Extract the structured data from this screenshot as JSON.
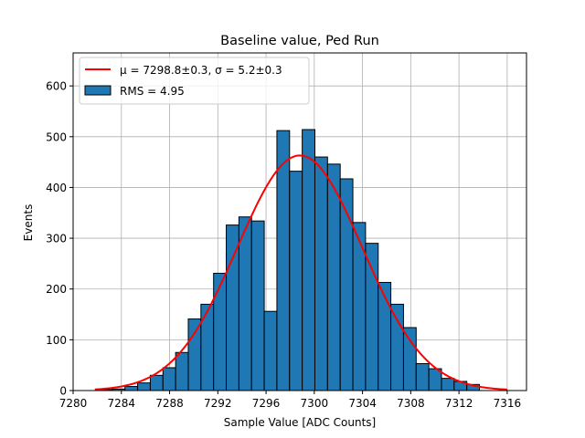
{
  "chart_data": {
    "type": "bar",
    "title": "Baseline value, Ped Run",
    "xlabel": "Sample Value [ADC Counts]",
    "ylabel": "Events",
    "xlim": [
      7280,
      7317.6
    ],
    "ylim": [
      0,
      665
    ],
    "xticks": [
      7280,
      7284,
      7288,
      7292,
      7296,
      7300,
      7304,
      7308,
      7312,
      7316
    ],
    "yticks": [
      0,
      100,
      200,
      300,
      400,
      500,
      600
    ],
    "grid": true,
    "legend_position": "top-left",
    "bar_color": "#1f77b4",
    "fit_color": "#ff0000",
    "bin_width": 1.05,
    "bins": [
      {
        "left": 7282.2,
        "value": 2
      },
      {
        "left": 7283.25,
        "value": 3
      },
      {
        "left": 7284.3,
        "value": 8
      },
      {
        "left": 7285.35,
        "value": 15
      },
      {
        "left": 7286.4,
        "value": 30
      },
      {
        "left": 7287.45,
        "value": 45
      },
      {
        "left": 7288.5,
        "value": 75
      },
      {
        "left": 7289.55,
        "value": 141
      },
      {
        "left": 7290.6,
        "value": 170
      },
      {
        "left": 7291.65,
        "value": 231
      },
      {
        "left": 7292.7,
        "value": 326
      },
      {
        "left": 7293.75,
        "value": 342
      },
      {
        "left": 7294.8,
        "value": 334
      },
      {
        "left": 7295.85,
        "value": 156
      },
      {
        "left": 7296.9,
        "value": 512
      },
      {
        "left": 7297.95,
        "value": 432
      },
      {
        "left": 7299.0,
        "value": 514
      },
      {
        "left": 7300.05,
        "value": 460
      },
      {
        "left": 7301.1,
        "value": 446
      },
      {
        "left": 7302.15,
        "value": 417
      },
      {
        "left": 7303.2,
        "value": 331
      },
      {
        "left": 7304.25,
        "value": 290
      },
      {
        "left": 7305.3,
        "value": 213
      },
      {
        "left": 7306.35,
        "value": 170
      },
      {
        "left": 7307.4,
        "value": 124
      },
      {
        "left": 7308.45,
        "value": 53
      },
      {
        "left": 7309.5,
        "value": 43
      },
      {
        "left": 7310.55,
        "value": 24
      },
      {
        "left": 7311.6,
        "value": 18
      },
      {
        "left": 7312.65,
        "value": 12
      }
    ],
    "fit": {
      "mu": 7298.8,
      "sigma": 5.2,
      "amplitude": 463,
      "x_range": [
        7281.8,
        7316
      ]
    },
    "legend": [
      {
        "kind": "line",
        "label": "μ = 7298.8±0.3, σ = 5.2±0.3"
      },
      {
        "kind": "patch",
        "label": "RMS = 4.95"
      }
    ]
  }
}
